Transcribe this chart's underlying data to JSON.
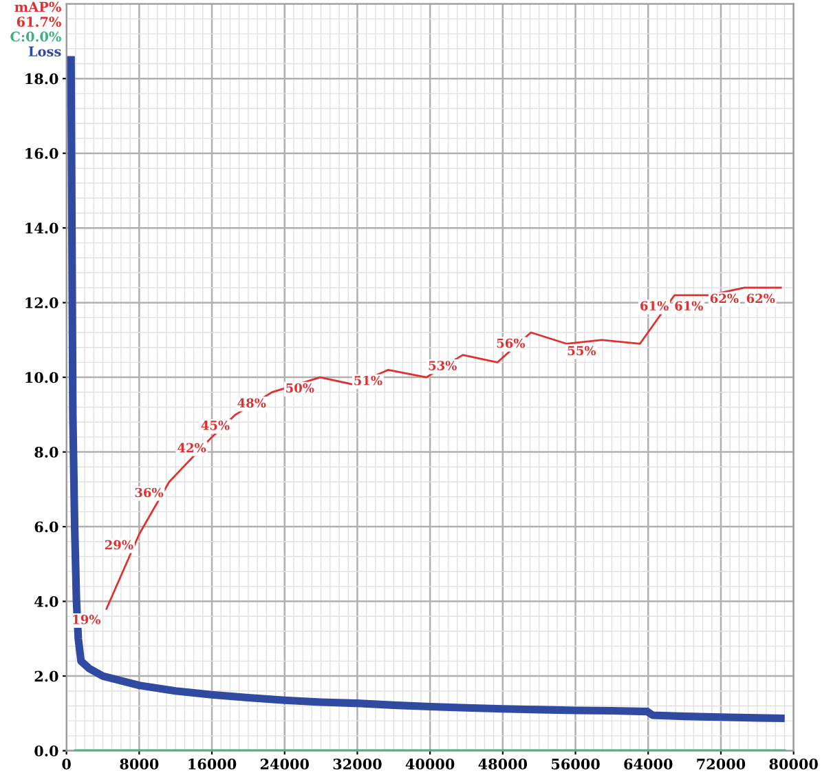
{
  "chart_data": {
    "type": "line",
    "series": [
      {
        "name": "mAP%",
        "color": "#e03030",
        "axis": "y2",
        "x": [
          4400,
          8000,
          11300,
          16000,
          18600,
          22600,
          27900,
          31700,
          35400,
          39600,
          43600,
          47400,
          51100,
          55000,
          58900,
          63100,
          66900,
          70700,
          74600,
          78600
        ],
        "values": [
          19,
          29,
          36,
          42,
          45,
          48,
          50,
          49,
          51,
          50,
          53,
          52,
          56,
          54.5,
          55,
          54.5,
          61,
          61,
          62,
          62
        ],
        "value_labels": [
          "19%",
          "29%",
          "36%",
          "42%",
          "45%",
          "48%",
          "50%",
          null,
          "51%",
          null,
          "53%",
          null,
          "56%",
          null,
          "55%",
          null,
          "61%",
          "61%",
          "62%",
          "62%"
        ]
      },
      {
        "name": "C:0.0%",
        "color": "#40b080",
        "x": [
          1000,
          79000
        ],
        "values": [
          0,
          0
        ]
      },
      {
        "name": "Loss",
        "color": "#2f4aa0",
        "x": [
          500,
          700,
          900,
          1100,
          1300,
          1600,
          2500,
          4000,
          8000,
          12000,
          16000,
          20000,
          24000,
          28000,
          32000,
          36000,
          40000,
          44000,
          48000,
          52000,
          56000,
          60000,
          63900,
          64500,
          68000,
          72000,
          76000,
          78600
        ],
        "values": [
          18.5,
          9,
          6,
          4,
          3,
          2.4,
          2.2,
          2.0,
          1.75,
          1.6,
          1.5,
          1.42,
          1.35,
          1.3,
          1.27,
          1.22,
          1.18,
          1.15,
          1.12,
          1.1,
          1.08,
          1.07,
          1.05,
          0.95,
          0.92,
          0.9,
          0.88,
          0.87
        ]
      }
    ],
    "annotations": [
      "61.7%"
    ],
    "xlim": [
      0,
      80000
    ],
    "xticks": [
      0,
      8000,
      16000,
      24000,
      32000,
      40000,
      48000,
      56000,
      64000,
      72000,
      80000
    ],
    "ylim": [
      0,
      20
    ],
    "y2lim": [
      0,
      100
    ],
    "yticks": [
      {
        "value": 0,
        "label": "0.0"
      },
      {
        "value": 2,
        "label": "2.0"
      },
      {
        "value": 4,
        "label": "4.0"
      },
      {
        "value": 6,
        "label": "6.0"
      },
      {
        "value": 8,
        "label": "8.0"
      },
      {
        "value": 10,
        "label": "10.0"
      },
      {
        "value": 12,
        "label": "12.0"
      },
      {
        "value": 14,
        "label": "14.0"
      },
      {
        "value": 16,
        "label": "16.0"
      },
      {
        "value": 18,
        "label": "18.0"
      }
    ],
    "grid": true,
    "legend": "top left",
    "marker": "none",
    "line_style": "solid"
  }
}
